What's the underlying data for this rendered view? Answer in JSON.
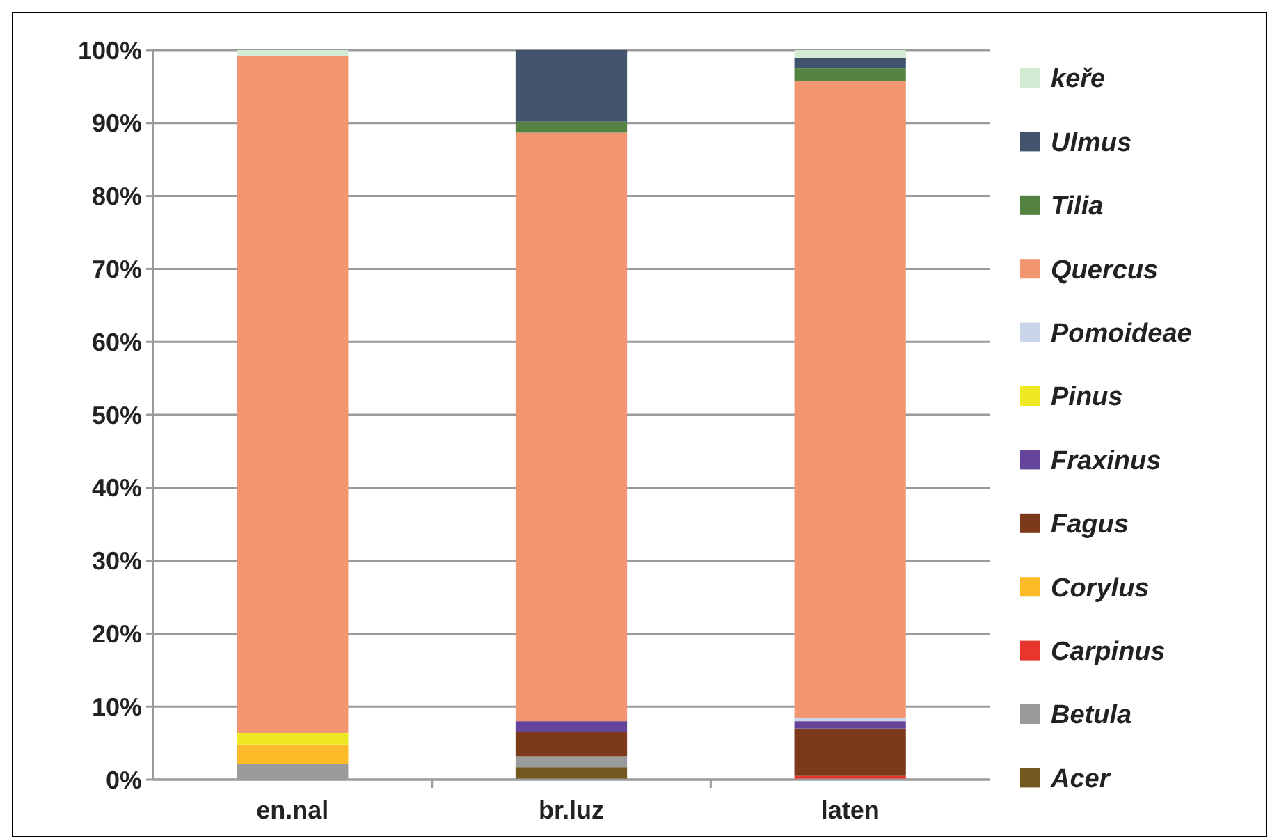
{
  "chart_data": {
    "type": "bar",
    "stacked": true,
    "categories": [
      "en.nal",
      "br.luz",
      "laten"
    ],
    "series": [
      {
        "name": "Acer",
        "color": "#72581f",
        "values": [
          0,
          1.7,
          0
        ]
      },
      {
        "name": "Betula",
        "color": "#9a9c9c",
        "values": [
          2.1,
          1.5,
          0
        ]
      },
      {
        "name": "Carpinus",
        "color": "#e8352e",
        "values": [
          0,
          0,
          0.5
        ]
      },
      {
        "name": "Corylus",
        "color": "#fdbb2a",
        "values": [
          2.7,
          0,
          0
        ]
      },
      {
        "name": "Fagus",
        "color": "#7c3a1a",
        "values": [
          0,
          3.3,
          6.5
        ]
      },
      {
        "name": "Fraxinus",
        "color": "#65449b",
        "values": [
          0,
          1.5,
          1.0
        ]
      },
      {
        "name": "Pinus",
        "color": "#efe824",
        "values": [
          1.6,
          0,
          0
        ]
      },
      {
        "name": "Pomoideae",
        "color": "#c9d6ea",
        "values": [
          0,
          0,
          0.5
        ]
      },
      {
        "name": "Quercus",
        "color": "#f29672",
        "values": [
          92.8,
          80.7,
          87.2
        ]
      },
      {
        "name": "Tilia",
        "color": "#548240",
        "values": [
          0,
          1.5,
          1.8
        ]
      },
      {
        "name": "Ulmus",
        "color": "#41546b",
        "values": [
          0,
          9.8,
          1.4
        ]
      },
      {
        "name": "keře",
        "color": "#d3ead3",
        "values": [
          0.8,
          0,
          1.1
        ]
      }
    ],
    "ylim": [
      0,
      100
    ],
    "yticks": [
      {
        "value": 0,
        "label": "0%"
      },
      {
        "value": 10,
        "label": "10%"
      },
      {
        "value": 20,
        "label": "20%"
      },
      {
        "value": 30,
        "label": "30%"
      },
      {
        "value": 40,
        "label": "40%"
      },
      {
        "value": 50,
        "label": "50%"
      },
      {
        "value": 60,
        "label": "60%"
      },
      {
        "value": 70,
        "label": "70%"
      },
      {
        "value": 80,
        "label": "80%"
      },
      {
        "value": 90,
        "label": "90%"
      },
      {
        "value": 100,
        "label": "100%"
      }
    ],
    "grid": "y",
    "legend": "right"
  }
}
